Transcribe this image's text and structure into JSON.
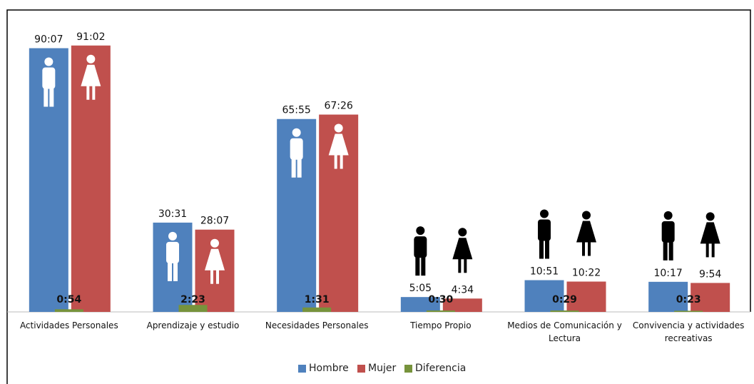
{
  "chart_data": {
    "type": "bar",
    "categories": [
      "Actividades Personales",
      "Aprendizaje y estudio",
      "Necesidades Personales",
      "Tiempo Propio",
      "Medios de Comunicación y Lectura",
      "Convivencia y actividades recreativas"
    ],
    "series": [
      {
        "name": "Hombre",
        "color": "#4f81bd",
        "values": [
          90.117,
          30.517,
          65.917,
          5.083,
          10.85,
          10.283
        ],
        "value_labels": [
          "90:07",
          "30:31",
          "65:55",
          "5:05",
          "10:51",
          "10:17"
        ]
      },
      {
        "name": "Mujer",
        "color": "#c0504d",
        "values": [
          91.033,
          28.117,
          67.433,
          4.567,
          10.367,
          9.9
        ],
        "value_labels": [
          "91:02",
          "28:07",
          "67:26",
          "4:34",
          "10:22",
          "9:54"
        ]
      },
      {
        "name": "Diferencia",
        "color": "#77933c",
        "values": [
          0.9,
          2.383,
          1.517,
          0.5,
          0.483,
          0.383
        ],
        "value_labels": [
          "0:54",
          "2:23",
          "1:31",
          "0:30",
          "0:29",
          "0:23"
        ]
      }
    ]
  }
}
